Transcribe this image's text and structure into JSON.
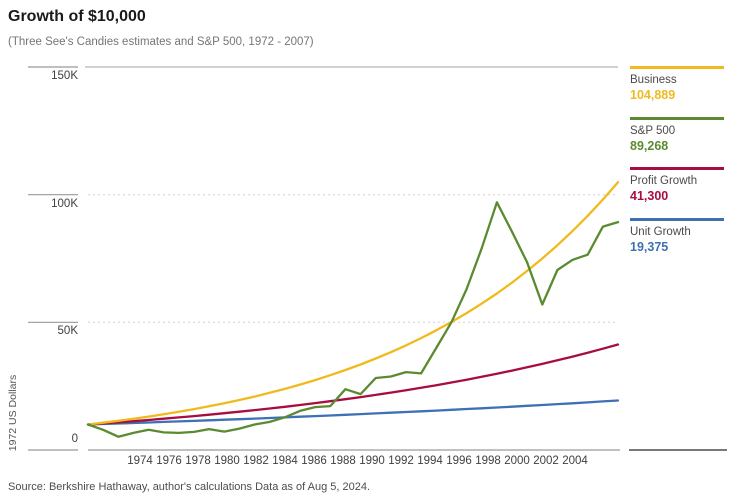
{
  "header": {
    "title": "Growth of $10,000",
    "subtitle": "(Three See's Candies estimates and S&P 500, 1972 - 2007)"
  },
  "footer": {
    "source": "Source: Berkshire Hathaway, author's calculations Data as of Aug 5, 2024."
  },
  "y_axis": {
    "label": "1972 US Dollars",
    "ticks": [
      {
        "label": "150K",
        "value": 150000
      },
      {
        "label": "100K",
        "value": 100000
      },
      {
        "label": "50K",
        "value": 50000
      },
      {
        "label": "0",
        "value": 0
      }
    ]
  },
  "x_axis": {
    "tick_years": [
      1974,
      1976,
      1978,
      1980,
      1982,
      1984,
      1986,
      1988,
      1990,
      1992,
      1994,
      1996,
      1998,
      2000,
      2002,
      2004
    ]
  },
  "legend": [
    {
      "name": "Business",
      "value": "104,889",
      "color": "#F0BA1E"
    },
    {
      "name": "S&P 500",
      "value": "89,268",
      "color": "#5B8B31"
    },
    {
      "name": "Profit Growth",
      "value": "41,300",
      "color": "#A80D40"
    },
    {
      "name": "Unit Growth",
      "value": "19,375",
      "color": "#3D70B5"
    }
  ],
  "colors": {
    "top_gridline": "#b5b5b5",
    "dotted_gridline": "#dcdcdc",
    "axis_line": "#9a9a9a",
    "tick_segment": "#999999",
    "legend_baseline": "#4d4d4d"
  },
  "chart_data": {
    "type": "line",
    "title": "Growth of $10,000",
    "subtitle": "(Three See's Candies estimates and S&P 500, 1972 - 2007)",
    "xlabel": "",
    "ylabel": "1972 US Dollars",
    "ylim": [
      0,
      150000
    ],
    "x_range": [
      1972,
      2007
    ],
    "grid": "horizontal, dotted at 50K and 100K, solid at 0 and 150K",
    "legend_position": "right",
    "x": [
      1972,
      1973,
      1974,
      1975,
      1976,
      1977,
      1978,
      1979,
      1980,
      1981,
      1982,
      1983,
      1984,
      1985,
      1986,
      1987,
      1988,
      1989,
      1990,
      1991,
      1992,
      1993,
      1994,
      1995,
      1996,
      1997,
      1998,
      1999,
      2000,
      2001,
      2002,
      2003,
      2004,
      2005,
      2006,
      2007
    ],
    "series": [
      {
        "name": "Business",
        "color": "#F0BA1E",
        "final_value": 104889,
        "values": [
          10000,
          10695,
          11437,
          12231,
          13081,
          13990,
          14962,
          16001,
          17113,
          18302,
          19573,
          20933,
          22387,
          23942,
          25606,
          27385,
          29287,
          31322,
          33498,
          35825,
          38314,
          40976,
          43823,
          46867,
          50123,
          53605,
          57329,
          61312,
          65571,
          70127,
          74999,
          80209,
          85781,
          91740,
          98113,
          104889
        ]
      },
      {
        "name": "S&P 500",
        "color": "#5B8B31",
        "final_value": 89268,
        "values": [
          10000,
          7900,
          5200,
          6700,
          7900,
          6900,
          6700,
          7100,
          8200,
          7200,
          8400,
          10000,
          11000,
          12800,
          15300,
          16800,
          17200,
          23800,
          21900,
          28200,
          28800,
          30500,
          30000,
          40000,
          50000,
          63000,
          79000,
          97000,
          85500,
          73500,
          57000,
          70500,
          74500,
          76500,
          87500,
          89268
        ]
      },
      {
        "name": "Profit Growth",
        "color": "#A80D40",
        "final_value": 41300,
        "values": [
          10000,
          10414,
          10845,
          11293,
          11760,
          12246,
          12753,
          13280,
          13829,
          14401,
          14996,
          15616,
          16262,
          16934,
          17634,
          18364,
          19123,
          19914,
          20737,
          21595,
          22488,
          23418,
          24386,
          25394,
          26444,
          27538,
          28677,
          29862,
          31097,
          32383,
          33722,
          35117,
          36569,
          38081,
          39656,
          41300
        ]
      },
      {
        "name": "Unit Growth",
        "color": "#3D70B5",
        "final_value": 19375,
        "values": [
          10000,
          10191,
          10385,
          10583,
          10785,
          10991,
          11201,
          11414,
          11632,
          11854,
          12080,
          12311,
          12546,
          12785,
          13029,
          13278,
          13531,
          13789,
          14052,
          14320,
          14594,
          14872,
          15156,
          15445,
          15740,
          16040,
          16346,
          16658,
          16976,
          17300,
          17630,
          17966,
          18309,
          18659,
          19015,
          19375
        ]
      }
    ]
  }
}
